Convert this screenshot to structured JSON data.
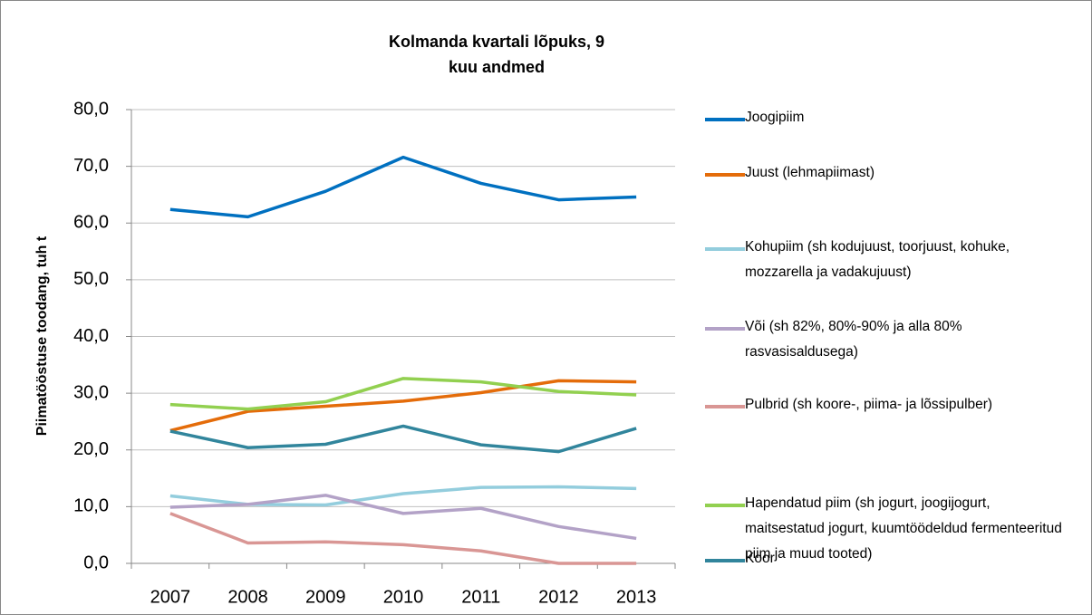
{
  "chart_data": {
    "type": "line",
    "title": "Kolmanda kvartali lõpuks, 9 kuu andmed",
    "y_label": "Piimatööstuse toodang, tuh t",
    "categories": [
      "2007",
      "2008",
      "2009",
      "2010",
      "2011",
      "2012",
      "2013"
    ],
    "series": [
      {
        "name": "Joogipiim",
        "color": "#0070c0",
        "values": [
          62.4,
          61.1,
          65.6,
          71.6,
          67.0,
          64.1,
          64.6
        ]
      },
      {
        "name": "Juust (lehmapiimast)",
        "color": "#e46c0a",
        "values": [
          23.4,
          26.8,
          27.7,
          28.6,
          30.1,
          32.2,
          32.0
        ]
      },
      {
        "name": "Kohupiim (sh kodujuust, toorjuust, kohuke, mozzarella ja vadakujuust)",
        "color": "#93cddd",
        "values": [
          11.9,
          10.4,
          10.3,
          12.3,
          13.4,
          13.5,
          13.2
        ]
      },
      {
        "name": "Või (sh 82%, 80%-90% ja alla 80% rasvasisaldusega)",
        "color": "#b3a2c7",
        "values": [
          9.9,
          10.4,
          12.0,
          8.8,
          9.7,
          6.5,
          4.4
        ]
      },
      {
        "name": "Pulbrid (sh koore-, piima- ja lõssipulber)",
        "color": "#d99694",
        "values": [
          8.8,
          3.6,
          3.8,
          3.3,
          2.2,
          0.0,
          0.0
        ]
      },
      {
        "name": "Hapendatud piim (sh jogurt, joogijogurt, maitsestatud jogurt, kuumtöödeldud fermenteeritud piim ja muud tooted)",
        "color": "#92d050",
        "values": [
          28.0,
          27.2,
          28.5,
          32.6,
          32.0,
          30.3,
          29.7
        ]
      },
      {
        "name": "Koor",
        "color": "#31859c",
        "values": [
          23.3,
          20.4,
          21.0,
          24.2,
          20.9,
          19.7,
          23.8
        ]
      }
    ],
    "ylim": [
      0,
      80
    ],
    "yticks": [
      {
        "value": 0,
        "label": "0,0"
      },
      {
        "value": 10,
        "label": "10,0"
      },
      {
        "value": 20,
        "label": "20,0"
      },
      {
        "value": 30,
        "label": "30,0"
      },
      {
        "value": 40,
        "label": "40,0"
      },
      {
        "value": 50,
        "label": "50,0"
      },
      {
        "value": 60,
        "label": "60,0"
      },
      {
        "value": 70,
        "label": "70,0"
      },
      {
        "value": 80,
        "label": "80,0"
      }
    ],
    "grid": true,
    "legend": "right"
  }
}
